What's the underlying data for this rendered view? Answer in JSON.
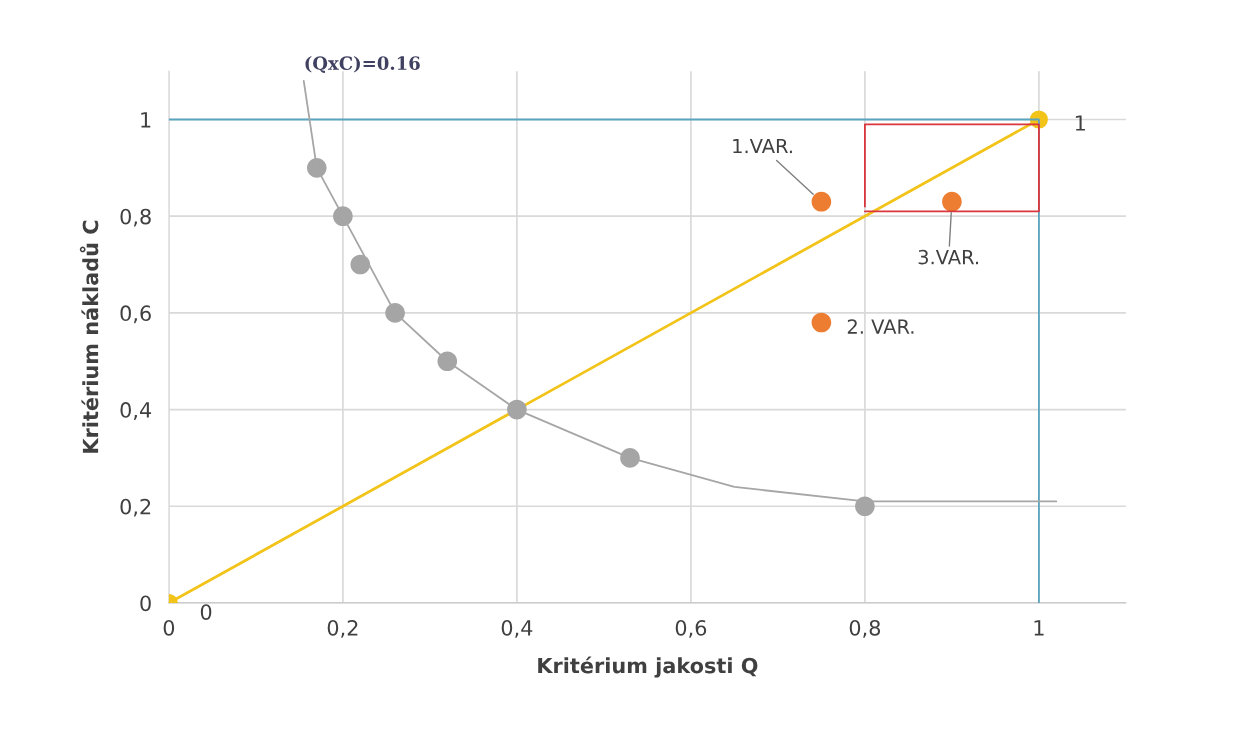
{
  "chart_data": {
    "type": "scatter",
    "xlabel": "Kritérium jakosti Q",
    "ylabel": "Kritérium nákladů C",
    "xlim": [
      0,
      1.1
    ],
    "ylim": [
      0,
      1.1
    ],
    "xticks": [
      0,
      {
        "value": 0.2,
        "label": "0,2"
      },
      {
        "value": 0.4,
        "label": "0,4"
      },
      {
        "value": 0.6,
        "label": "0,6"
      },
      {
        "value": 0.8,
        "label": "0,8"
      },
      1
    ],
    "yticks": [
      0,
      {
        "value": 0.2,
        "label": "0,2"
      },
      {
        "value": 0.4,
        "label": "0,4"
      },
      {
        "value": 0.6,
        "label": "0,6"
      },
      {
        "value": 0.8,
        "label": "0,8"
      },
      1
    ],
    "grid": true,
    "legend": false,
    "marker": "circle",
    "series": [
      {
        "type": "line",
        "color": "#5ba3bf",
        "x": [
          0,
          1,
          1
        ],
        "values": [
          1,
          1,
          0
        ],
        "marker": "none"
      },
      {
        "type": "line",
        "color": "#d9363e",
        "x": [
          0.8,
          1,
          1,
          0.8,
          0.8
        ],
        "values": [
          0.81,
          0.81,
          0.99,
          0.99,
          0.82
        ],
        "marker": "none"
      },
      {
        "type": "line",
        "color": "#a6a6a6",
        "x": [
          0.155,
          0.17,
          0.2,
          0.26,
          0.32,
          0.4,
          0.53,
          0.65,
          0.8,
          1.02
        ],
        "values": [
          1.08,
          0.9,
          0.8,
          0.6,
          0.5,
          0.4,
          0.3,
          0.24,
          0.21,
          0.21
        ],
        "marker": "none"
      },
      {
        "color": "#a5a5a5",
        "x": [
          0.17,
          0.2,
          0.22,
          0.26,
          0.32,
          0.4,
          0.53,
          0.8
        ],
        "values": [
          0.9,
          0.8,
          0.7,
          0.6,
          0.5,
          0.4,
          0.3,
          0.2
        ]
      },
      {
        "type": "line",
        "color": "#f2c318",
        "x": [
          0,
          1
        ],
        "values": [
          0,
          1
        ],
        "marker": "circle"
      },
      {
        "color": "#ed7d31",
        "x": [
          0.75,
          0.75,
          0.9
        ],
        "values": [
          0.83,
          0.58,
          0.83
        ]
      }
    ],
    "annotations": [
      {
        "text": "0",
        "x": 0,
        "y": 0
      },
      {
        "text": "1",
        "x": 1,
        "y": 1
      },
      {
        "text": "1.VAR.",
        "x": 0.75,
        "y": 0.83
      },
      {
        "text": "2. VAR.",
        "x": 0.75,
        "y": 0.58
      },
      {
        "text": "3.VAR.",
        "x": 0.9,
        "y": 0.83
      },
      {
        "text": "(QxC)=0.16",
        "x": 0.155,
        "y": 1.08
      }
    ]
  }
}
